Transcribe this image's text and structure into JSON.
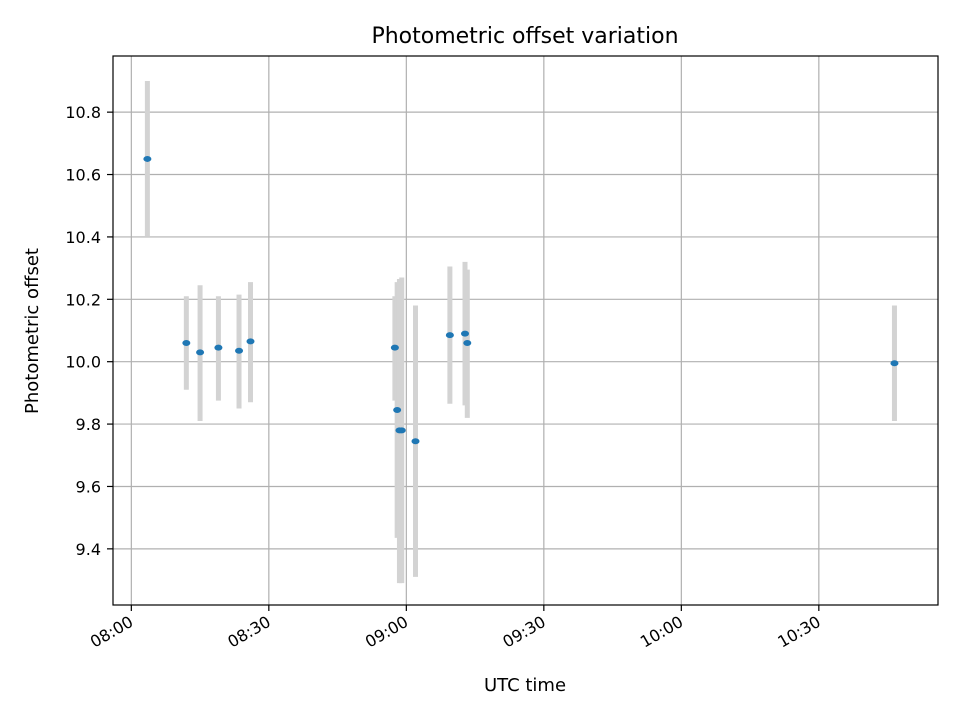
{
  "chart_data": {
    "type": "scatter",
    "title": "Photometric offset variation",
    "xlabel": "UTC time",
    "ylabel": "Photometric offset",
    "x_axis": {
      "kind": "time",
      "range": [
        "07:56",
        "10:56"
      ],
      "ticks": [
        "08:00",
        "08:30",
        "09:00",
        "09:30",
        "10:00",
        "10:30"
      ]
    },
    "y_axis": {
      "range": [
        9.22,
        10.98
      ],
      "ticks": [
        9.4,
        9.6,
        9.8,
        10.0,
        10.2,
        10.4,
        10.6,
        10.8
      ],
      "tick_labels": [
        "9.4",
        "9.6",
        "9.8",
        "10.0",
        "10.2",
        "10.4",
        "10.6",
        "10.8"
      ]
    },
    "grid": true,
    "colors": {
      "marker": "#1f77b4",
      "errorbar": "#d3d3d3",
      "grid": "#b0b0b0",
      "frame": "#000000"
    },
    "points": [
      {
        "x": "08:03.5",
        "y": 10.65,
        "yerr_low": 10.4,
        "yerr_high": 10.9
      },
      {
        "x": "08:12.0",
        "y": 10.06,
        "yerr_low": 9.91,
        "yerr_high": 10.21
      },
      {
        "x": "08:15.0",
        "y": 10.03,
        "yerr_low": 9.81,
        "yerr_high": 10.245
      },
      {
        "x": "08:19.0",
        "y": 10.045,
        "yerr_low": 9.875,
        "yerr_high": 10.21
      },
      {
        "x": "08:23.5",
        "y": 10.035,
        "yerr_low": 9.85,
        "yerr_high": 10.215
      },
      {
        "x": "08:26.0",
        "y": 10.065,
        "yerr_low": 9.87,
        "yerr_high": 10.255
      },
      {
        "x": "08:57.5",
        "y": 10.045,
        "yerr_low": 9.875,
        "yerr_high": 10.21
      },
      {
        "x": "08:58.0",
        "y": 9.845,
        "yerr_low": 9.435,
        "yerr_high": 10.255
      },
      {
        "x": "08:58.5",
        "y": 9.78,
        "yerr_low": 9.29,
        "yerr_high": 10.265
      },
      {
        "x": "08:59.0",
        "y": 9.78,
        "yerr_low": 9.29,
        "yerr_high": 10.27
      },
      {
        "x": "09:02.0",
        "y": 9.745,
        "yerr_low": 9.31,
        "yerr_high": 10.18
      },
      {
        "x": "09:09.5",
        "y": 10.085,
        "yerr_low": 9.865,
        "yerr_high": 10.305
      },
      {
        "x": "09:12.8",
        "y": 10.09,
        "yerr_low": 9.86,
        "yerr_high": 10.32
      },
      {
        "x": "09:13.3",
        "y": 10.06,
        "yerr_low": 9.82,
        "yerr_high": 10.295
      },
      {
        "x": "10:46.5",
        "y": 9.995,
        "yerr_low": 9.81,
        "yerr_high": 10.18
      }
    ]
  }
}
